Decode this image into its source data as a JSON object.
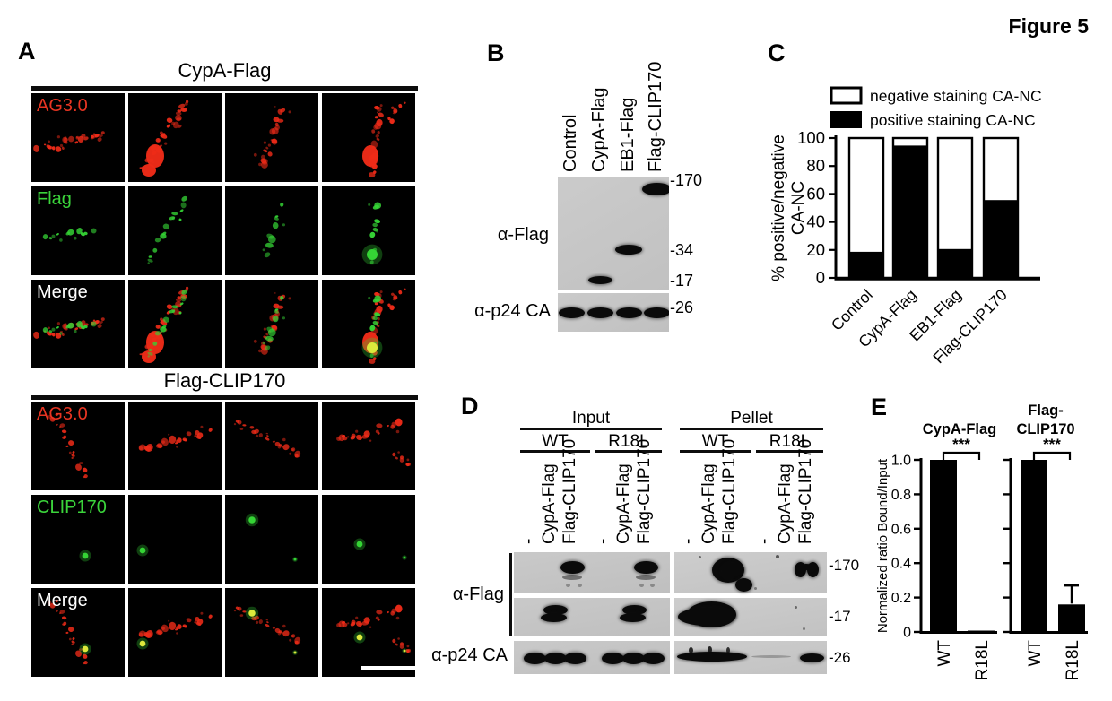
{
  "figure_label": "Figure 5",
  "panel_a": {
    "label": "A",
    "columns": 4,
    "has_scale_bar": true,
    "groups": [
      {
        "title": "CypA-Flag",
        "rows": [
          {
            "label": "AG3.0",
            "label_color": "#e83522",
            "channel": "red"
          },
          {
            "label": "Flag",
            "label_color": "#3bd43b",
            "channel": "green"
          },
          {
            "label": "Merge",
            "label_color": "#ffffff",
            "channel": "merge"
          }
        ]
      },
      {
        "title": "Flag-CLIP170",
        "rows": [
          {
            "label": "AG3.0",
            "label_color": "#e83522",
            "channel": "red"
          },
          {
            "label": "CLIP170",
            "label_color": "#3bd43b",
            "channel": "green"
          },
          {
            "label": "Merge",
            "label_color": "#ffffff",
            "channel": "merge"
          }
        ]
      }
    ]
  },
  "panel_b": {
    "label": "B",
    "lane_labels": [
      "Control",
      "CypA-Flag",
      "EB1-Flag",
      "Flag-CLIP170"
    ],
    "blot_labels": [
      "α-Flag",
      "α-p24 CA"
    ],
    "mw_markers": [
      "-170",
      "-34",
      "-17",
      "-26"
    ]
  },
  "panel_d": {
    "label": "D",
    "group_headers": [
      "Input",
      "Pellet"
    ],
    "subgroup_headers": [
      "WT",
      "R18L"
    ],
    "lane_labels": [
      "-",
      "CypA-Flag",
      "Flag-CLIP170"
    ],
    "blot_labels": [
      "α-Flag",
      "α-p24 CA"
    ],
    "mw_markers": [
      "-170",
      "-17",
      "-26"
    ]
  },
  "chart_data": [
    {
      "id": "panel_c",
      "panel_label": "C",
      "type": "bar",
      "stacked": true,
      "categories": [
        "Control",
        "CypA-Flag",
        "EB1-Flag",
        "Flag-CLIP170"
      ],
      "series": [
        {
          "name": "negative staining CA-NC",
          "color": "#ffffff",
          "values": [
            82,
            6,
            80,
            45
          ]
        },
        {
          "name": "positive staining CA-NC",
          "color": "#000000",
          "values": [
            18,
            94,
            20,
            55
          ]
        }
      ],
      "ylabel": "% positive/negative CA-NC",
      "ylabel_lines": [
        "% positive/negative",
        "CA-NC"
      ],
      "ylim": [
        0,
        100
      ],
      "yticks": [
        0,
        20,
        40,
        60,
        80,
        100
      ],
      "legend_position": "top",
      "grid": false
    },
    {
      "id": "panel_e",
      "panel_label": "E",
      "type": "bar",
      "ylabel": "Normalized ratio Bound/Input",
      "ylim": [
        0,
        1.0
      ],
      "yticks": [
        0,
        0.2,
        0.4,
        0.6,
        0.8,
        1.0
      ],
      "bar_color": "#000000",
      "charts": [
        {
          "title": "CypA-Flag",
          "title_lines": [
            "CypA-Flag"
          ],
          "categories": [
            "WT",
            "R18L"
          ],
          "values": [
            1.0,
            0.0
          ],
          "errors": [
            0,
            0
          ],
          "significance": "***"
        },
        {
          "title": "Flag-CLIP170",
          "title_lines": [
            "Flag-",
            "CLIP170"
          ],
          "categories": [
            "WT",
            "R18L"
          ],
          "values": [
            1.0,
            0.16
          ],
          "errors": [
            0,
            0.11
          ],
          "significance": "***"
        }
      ]
    }
  ]
}
